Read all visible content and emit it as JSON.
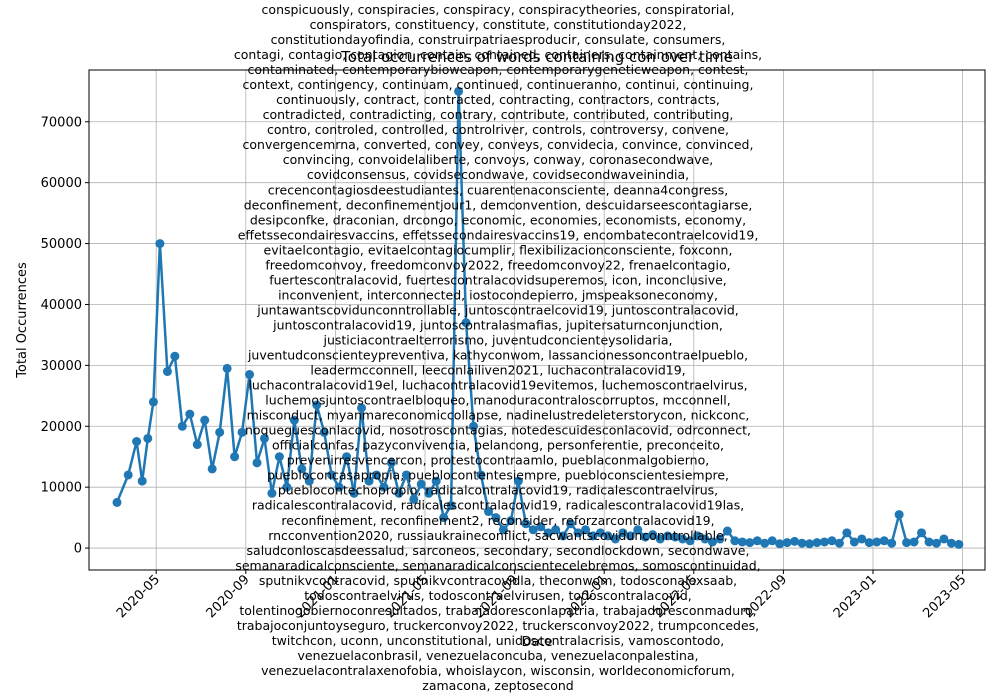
{
  "chart_data": {
    "type": "line",
    "title": "Total occurrences of words containing con over time",
    "x_label": "Date",
    "y_label": "Total Occurrences",
    "color": "#1f77b4",
    "grid": true,
    "x": [
      "2020-03",
      "2020-03",
      "2020-04",
      "2020-04",
      "2020-04",
      "2020-04",
      "2020-05",
      "2020-05",
      "2020-05",
      "2020-06",
      "2020-06",
      "2020-06",
      "2020-07",
      "2020-07",
      "2020-07",
      "2020-08",
      "2020-08",
      "2020-08",
      "2020-09",
      "2020-09",
      "2020-09",
      "2020-10",
      "2020-10",
      "2020-10",
      "2020-11",
      "2020-11",
      "2020-11",
      "2020-12",
      "2020-12",
      "2020-12",
      "2021-01",
      "2021-01",
      "2021-01",
      "2021-02",
      "2021-02",
      "2021-02",
      "2021-03",
      "2021-03",
      "2021-03",
      "2021-04",
      "2021-04",
      "2021-04",
      "2021-05",
      "2021-05",
      "2021-05",
      "2021-06",
      "2021-06",
      "2021-06",
      "2021-07",
      "2021-07",
      "2021-07",
      "2021-08",
      "2021-08",
      "2021-08",
      "2021-09",
      "2021-09",
      "2021-09",
      "2021-10",
      "2021-10",
      "2021-10",
      "2021-11",
      "2021-11",
      "2021-11",
      "2021-12",
      "2021-12",
      "2021-12",
      "2022-01",
      "2022-01",
      "2022-01",
      "2022-02",
      "2022-02",
      "2022-02",
      "2022-03",
      "2022-03",
      "2022-03",
      "2022-04",
      "2022-04",
      "2022-04",
      "2022-05",
      "2022-05",
      "2022-05",
      "2022-06",
      "2022-06",
      "2022-06",
      "2022-07",
      "2022-07",
      "2022-07",
      "2022-08",
      "2022-08",
      "2022-08",
      "2022-09",
      "2022-09",
      "2022-09",
      "2022-10",
      "2022-10",
      "2022-10",
      "2022-11",
      "2022-11",
      "2022-11",
      "2022-12",
      "2022-12",
      "2022-12",
      "2023-01",
      "2023-01",
      "2023-01",
      "2023-02",
      "2023-02",
      "2023-02",
      "2023-03",
      "2023-03",
      "2023-03",
      "2023-04",
      "2023-04",
      "2023-04"
    ],
    "values": [
      7500,
      12000,
      17500,
      11000,
      18000,
      24000,
      50000,
      29000,
      31500,
      20000,
      22000,
      17000,
      21000,
      13000,
      19000,
      29500,
      15000,
      19000,
      28500,
      14000,
      18000,
      9000,
      15000,
      10000,
      21000,
      13000,
      11000,
      23500,
      19000,
      12000,
      10000,
      15000,
      9000,
      23000,
      11000,
      12000,
      10000,
      14000,
      9000,
      12000,
      8000,
      10500,
      9000,
      11000,
      5000,
      7000,
      75000,
      37000,
      20000,
      12000,
      6000,
      5000,
      3000,
      4500,
      11000,
      4000,
      3000,
      3500,
      2500,
      3000,
      2000,
      4000,
      2500,
      3000,
      2000,
      2500,
      2000,
      1500,
      2500,
      2000,
      3000,
      1800,
      2200,
      1500,
      2000,
      1800,
      1500,
      1200,
      2000,
      1500,
      1000,
      1500,
      2800,
      1200,
      1000,
      900,
      1200,
      800,
      1200,
      700,
      900,
      1100,
      800,
      700,
      900,
      1000,
      1200,
      800,
      2500,
      1000,
      1500,
      900,
      1000,
      1200,
      800,
      5500,
      900,
      1000,
      2500,
      1000,
      800,
      1500,
      800,
      600
    ],
    "xlim": [
      "2020-02",
      "2023-06"
    ],
    "xticks": [
      "2020-05",
      "2020-09",
      "2021-01",
      "2021-05",
      "2021-09",
      "2022-01",
      "2022-05",
      "2022-09",
      "2023-01",
      "2023-05"
    ],
    "ylim": [
      -3600,
      78500
    ],
    "yticks": [
      0,
      10000,
      20000,
      30000,
      40000,
      50000,
      60000,
      70000
    ],
    "annotation_lines": [
      "conspicuously, conspiracies, conspiracy, conspiracytheories, conspiratorial,",
      "conspirators, constituency, constitute, constitutionday2022,",
      "constitutiondayofindia, construirpatriaesproducir, consulate, consumers,",
      "contagi, contagio, contagion, contain, contained, containers, containment, contains,",
      "contaminated, contemporarybioweapon, contemporarygeneticweapon, contest,",
      "context, contingency, continuam, continued, continueranno, continui, continuing,",
      "continuously, contract, contracted, contracting, contractors, contracts,",
      "contradicted, contradicting, contrary, contribute, contributed, contributing,",
      "contro, controled, controlled, controlriver, controls, controversy, convene,",
      "convergencemrna, converted, convey, conveys, convidecia, convince, convinced,",
      "convincing, convoidelaliberte, convoys, conway, coronasecondwave,",
      "covidconsensus, covidsecondwave, covidsecondwaveinindia,",
      "crecencontagiosdeestudiantes, cuarentenaconsciente, deanna4congress,",
      "deconfinement, deconfinementjour1, demconvention, descuidarseescontagiarse,",
      "desipconfke, draconian, drcongo, economic, economies, economists, economy,",
      "effetssecondairesvaccins, effetssecondairesvaccins19, encombatecontraelcovid19,",
      "evitaelcontagio, evitaelcontagiocumplir, flexibilizacionconsciente, foxconn,",
      "freedomconvoy, freedomconvoy2022, freedomconvoy22, frenaelcontagio,",
      "fuertescontralacovid, fuertescontralacovidsuperemos, icon, inconclusive,",
      "inconvenient, interconnected, iostocondepierro, jmspeaksoneconomy,",
      "juntawantscovidunconntrollable, juntoscontraelcovid19, juntoscontralacovid,",
      "juntoscontralacovid19, juntoscontralasmafias, jupitersaturnconjunction,",
      "justiciacontraelterrorismo, juventudconcienteysolidaria,",
      "juventudconscienteypreventiva, kathyconwom, lassancionessoncontraelpueblo,",
      "leadermcconnell, leeconlailiven2021, luchacontralacovid19,",
      "luchacontralacovid19el, luchacontralacovid19evitemos, luchemoscontraelvirus,",
      "luchemosjuntoscontraelbloqueo, manoduracontraloscorruptos, mcconnell,",
      "misconduct, myanmareconomiccollapse, nadinelustredeleterstorycon, nickconc,",
      "noqueguesconlacovid, nosotroscontagias, notedescuidesconlacovid, odrconnect,",
      "officialconfas, pazyconvivencia, pelancong, personferentie, preconceito,",
      "prevenirresvencercon, protestocontraamlo, pueblaconmalgobierno,",
      "puebloconcasapropia, pueblocontentesiempre, puebloconscientesiempre,",
      "pueblocontechopropio, radicalcontralacovid19, radicalescontraelvirus,",
      "radicalescontralacovid, radicalescontralacovid19, radicalescontralacovid19las,",
      "reconfinement, reconfinement2, reconsider, reforzarcontralacovid19,",
      "rncconvention2020, russiaukraineconflict, sacwantscovidunconntrollable,",
      "saludconloscasdeessalud, sarconeos, secondary, secondlockdown, secondwave,",
      "semanaradicalconsciente, semanaradicalconscientecelebremos, somoscontinuidad,",
      "sputnikvcontracovid, sputnikvcontracovidla, theconwom, todosconalexsaab,",
      "todoscontraelvirus, todoscontraelvirusen, todoscontralacovid,",
      "tolentinogobiernoconresultados, trabajadoresconlapatria, trabajadoresconmaduro,",
      "trabajoconjuntoyseguro, truckerconvoy2022, truckersconvoy2022, trumpconcedes,",
      "twitchcon, uconn, unconstitutional, unidoscontralacrisis, vamoscontodo,",
      "venezuelaconbrasil, venezuelaconcuba, venezuelaconpalestina,",
      "venezuelacontralaxenofobia, whoislaycon, wisconsin, worldeconomicforum,",
      "zamacona, zeptosecond"
    ]
  }
}
